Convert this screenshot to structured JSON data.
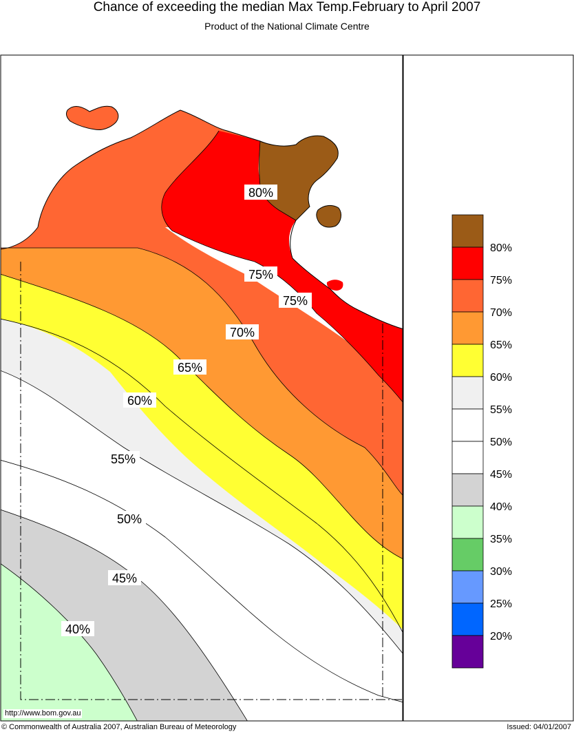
{
  "header": {
    "title": "Chance of exceeding the median Max Temp.February to April 2007",
    "subtitle": "Product of the National Climate Centre"
  },
  "map": {
    "contour_labels": [
      "80%",
      "75%",
      "75%",
      "70%",
      "65%",
      "60%",
      "55%",
      "50%",
      "45%",
      "40%"
    ],
    "url": "http://www.bom.gov.au"
  },
  "legend": {
    "items": [
      {
        "label": "80%",
        "color": "#9b5b17"
      },
      {
        "label": "75%",
        "color": "#ff0000"
      },
      {
        "label": "70%",
        "color": "#ff6633"
      },
      {
        "label": "65%",
        "color": "#ff9933"
      },
      {
        "label": "60%",
        "color": "#ffff33"
      },
      {
        "label": "55%",
        "color": "#f0f0f0"
      },
      {
        "label": "50%",
        "color": "#ffffff"
      },
      {
        "label": "45%",
        "color": "#ffffff"
      },
      {
        "label": "40%",
        "color": "#d3d3d3"
      },
      {
        "label": "35%",
        "color": "#ccffcc"
      },
      {
        "label": "30%",
        "color": "#66cc66"
      },
      {
        "label": "25%",
        "color": "#6699ff"
      },
      {
        "label": "20%",
        "color": "#0066ff"
      },
      {
        "label": "",
        "color": "#660099"
      }
    ]
  },
  "footer": {
    "copyright": "© Commonwealth of Australia 2007, Australian Bureau of Meteorology",
    "issued": "Issued: 04/01/2007"
  }
}
